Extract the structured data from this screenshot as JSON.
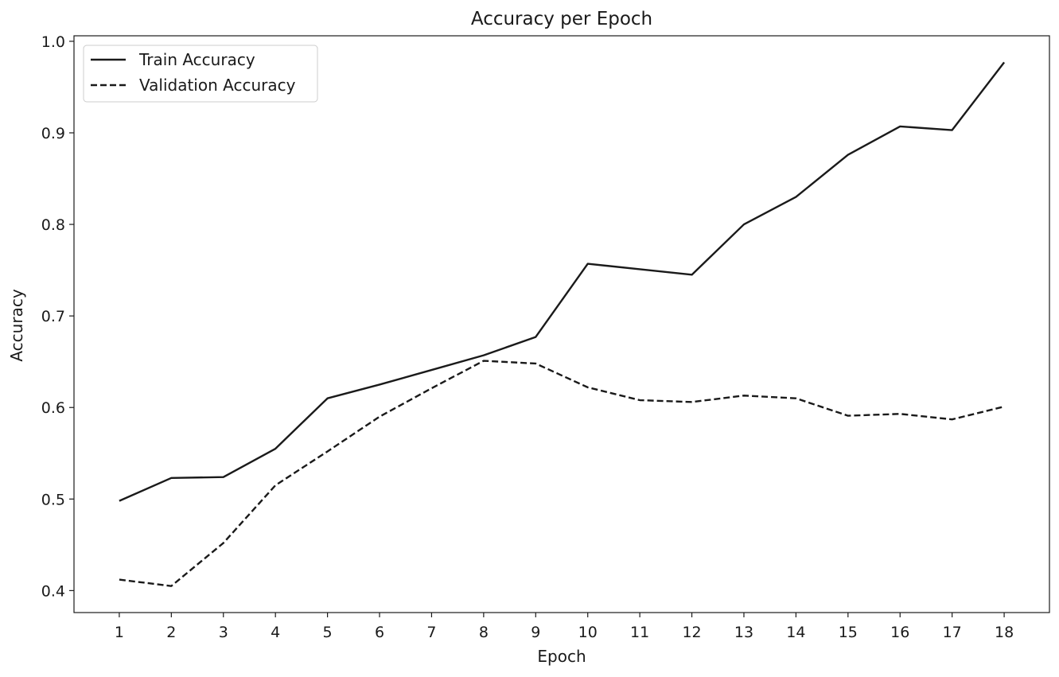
{
  "chart_data": {
    "type": "line",
    "title": "Accuracy per Epoch",
    "xlabel": "Epoch",
    "ylabel": "Accuracy",
    "x": [
      1,
      2,
      3,
      4,
      5,
      6,
      7,
      8,
      9,
      10,
      11,
      12,
      13,
      14,
      15,
      16,
      17,
      18
    ],
    "xlim": [
      0.13,
      18.87
    ],
    "ylim": [
      0.376,
      1.006
    ],
    "yticks": [
      "0.4",
      "0.5",
      "0.6",
      "0.7",
      "0.8",
      "0.9",
      "1.0"
    ],
    "xticks": [
      "1",
      "2",
      "3",
      "4",
      "5",
      "6",
      "7",
      "8",
      "9",
      "10",
      "11",
      "12",
      "13",
      "14",
      "15",
      "16",
      "17",
      "18"
    ],
    "grid": false,
    "legend_position": "upper-left",
    "series": [
      {
        "name": "Train Accuracy",
        "style": "solid",
        "color": "#1a1a1a",
        "values": [
          0.498,
          0.523,
          0.524,
          0.555,
          0.61,
          0.625,
          0.641,
          0.657,
          0.677,
          0.757,
          0.751,
          0.745,
          0.8,
          0.83,
          0.876,
          0.907,
          0.903,
          0.977
        ]
      },
      {
        "name": "Validation Accuracy",
        "style": "dashed",
        "color": "#1a1a1a",
        "values": [
          0.412,
          0.405,
          0.452,
          0.515,
          0.552,
          0.59,
          0.621,
          0.651,
          0.648,
          0.622,
          0.608,
          0.606,
          0.613,
          0.61,
          0.591,
          0.593,
          0.587,
          0.601
        ]
      }
    ]
  }
}
